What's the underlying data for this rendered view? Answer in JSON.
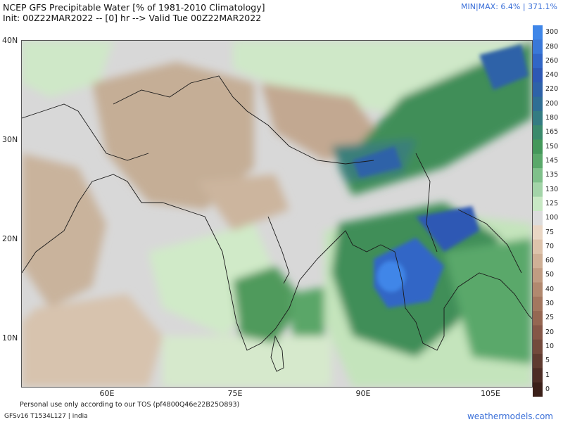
{
  "header": {
    "title_line1": "NCEP GFS Precipitable Water [% of 1981-2010 Climatology]",
    "title_line2": "Init: 00Z22MAR2022 -- [0] hr --> Valid Tue 00Z22MAR2022",
    "minmax": "MIN|MAX: 6.4% | 371.1%"
  },
  "map": {
    "lat_labels": [
      "40N",
      "30N",
      "20N",
      "10N"
    ],
    "lon_labels": [
      "60E",
      "75E",
      "90E",
      "105E"
    ]
  },
  "colorbar": {
    "labels": [
      "300",
      "280",
      "260",
      "240",
      "220",
      "200",
      "180",
      "165",
      "150",
      "145",
      "135",
      "130",
      "125",
      "100",
      "75",
      "70",
      "60",
      "50",
      "40",
      "30",
      "25",
      "20",
      "10",
      "5",
      "1",
      "0"
    ],
    "colors": [
      "#3f86e8",
      "#3a78d8",
      "#3166c6",
      "#2d58b4",
      "#2e62a8",
      "#2f6e94",
      "#347c82",
      "#3b8a6c",
      "#44985a",
      "#5aa86a",
      "#7fc08a",
      "#a3d4a8",
      "#c8e8c4",
      "#dcdcdc",
      "#e9d6c4",
      "#ddc3ab",
      "#cfb096",
      "#c09c82",
      "#b1896f",
      "#a3775f",
      "#956752",
      "#855747",
      "#734a3c",
      "#5f3b30",
      "#4d2d25",
      "#3b2019"
    ]
  },
  "footer": {
    "tos": "Personal use only according to our TOS (pf4800Q46e22B25O893)",
    "model": "GFSv16 T1534L127 | india",
    "brand": "weathermodels.com"
  }
}
